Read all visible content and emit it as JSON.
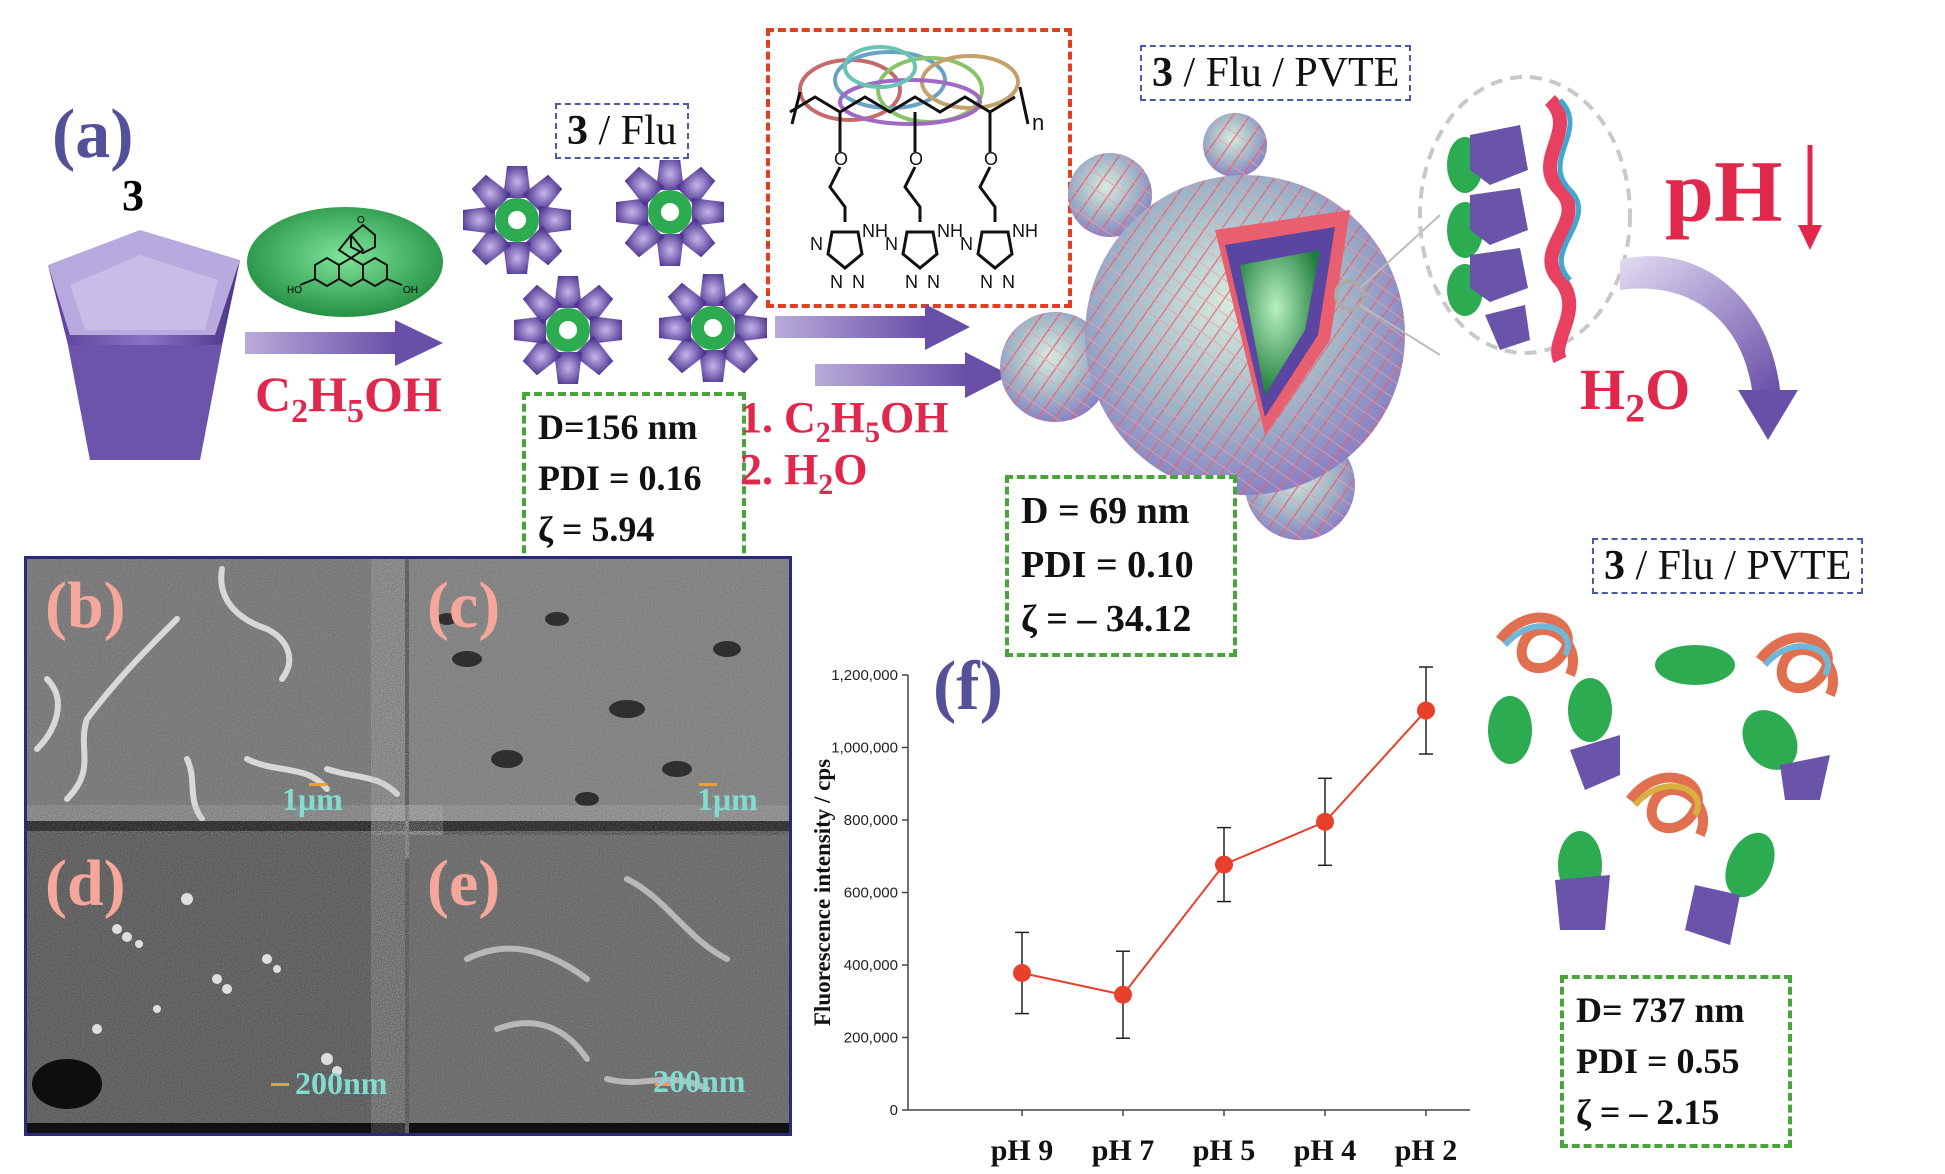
{
  "panel_labels": {
    "a": "(a)",
    "b": "(b)",
    "c": "(c)",
    "d": "(d)",
    "e": "(e)",
    "f": "(f)"
  },
  "compound": "3",
  "step1_solvent": {
    "main": "C",
    "s1": "2",
    "m1": "H",
    "s2": "5",
    "tail": "OH"
  },
  "box1": {
    "bold": "3",
    "rest": " / Flu"
  },
  "box2": {
    "bold": "3",
    "rest": " / Flu / PVTE"
  },
  "box3": {
    "bold": "3",
    "rest": " / Flu / PVTE"
  },
  "polymer_n": "n",
  "tetrazole": {
    "nh": "NH",
    "n": "N"
  },
  "step2": {
    "line1": {
      "prefix": "1. C",
      "s1": "2",
      "m1": "H",
      "s2": "5",
      "tail": "OH"
    },
    "line2": {
      "prefix": "2. H",
      "s1": "2",
      "tail": "O"
    }
  },
  "ph_label": "pH",
  "water": {
    "main": "H",
    "sub": "2",
    "tail": "O"
  },
  "props1": {
    "d": "D=156 nm",
    "pdi": "PDI = 0.16",
    "zeta": "ζ = 5.94"
  },
  "props2": {
    "d": "D = 69 nm",
    "pdi": "PDI = 0.10",
    "zeta": "ζ = – 34.12"
  },
  "props3": {
    "d": "D= 737 nm",
    "pdi": "PDI = 0.55",
    "zeta": "ζ = – 2.15"
  },
  "sem": {
    "b_scale": "1μm",
    "c_scale": "1μm",
    "d_scale": "200nm",
    "e_scale": "200nm"
  },
  "colors": {
    "accent_red": "#e0284d",
    "purple": "#55509a",
    "green_dash": "#4aa43c",
    "marker": "#e8402a"
  },
  "chart_data": {
    "type": "line",
    "categories": [
      "pH 9",
      "pH 7",
      "pH 5",
      "pH 4",
      "pH 2"
    ],
    "values": [
      378000,
      318000,
      677000,
      795000,
      1102000
    ],
    "errors": [
      112000,
      120000,
      102000,
      120000,
      120000
    ],
    "ylabel": "Fluorescence intensity / cps",
    "ylim": [
      0,
      1200000
    ],
    "yticks": [
      "0",
      "200,000",
      "400,000",
      "600,000",
      "800,000",
      "1,000,000",
      "1,200,000"
    ],
    "grid": false,
    "line_color": "#e8402a"
  }
}
